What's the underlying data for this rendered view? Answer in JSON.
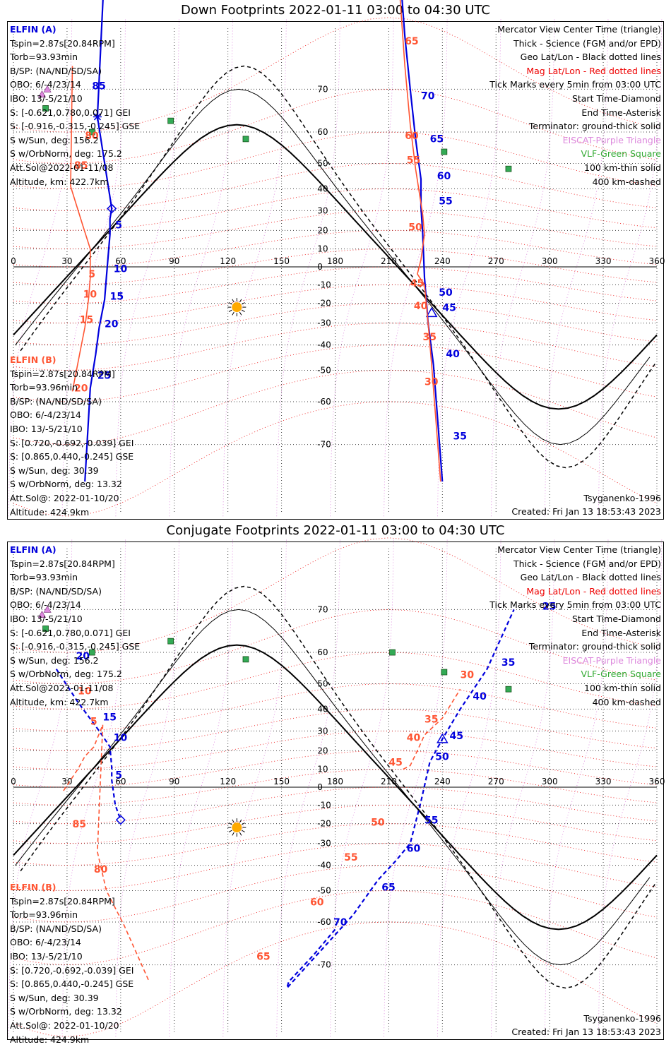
{
  "panels": [
    {
      "title": "Down Footprints 2022-01-11 03:00 to 04:30 UTC",
      "elfin_a": {
        "name": "ELFIN (A)",
        "lines": [
          "Tspin=2.87s[20.84RPM]",
          "Torb=93.93min",
          "B/SP: (NA/ND/SD/SA)",
          "OBO: 6/-4/23/14",
          "IBO: 13/-5/21/10",
          "S: [-0.621,0.780,0.071] GEI",
          "S: [-0.916,-0.315,-0.245] GSE",
          "S w/Sun, deg: 156.2",
          "S w/OrbNorm, deg: 175.2",
          "Att.Sol@2022-01-11/08",
          "Altitude, km: 422.7km"
        ]
      },
      "elfin_b": {
        "name": "ELFIN (B)",
        "lines": [
          "Tspin=2.87s[20.84RPM]",
          "Torb=93.96min",
          "B/SP: (NA/ND/SD/SA)",
          "OBO: 6/-4/23/14",
          "IBO: 13/-5/21/10",
          "S: [0.720,-0.692,-0.039] GEI",
          "S: [0.865,0.440,-0.245] GSE",
          "S w/Sun, deg: 30.39",
          "S w/OrbNorm, deg: 13.32",
          "Att.Sol@: 2022-01-10/20",
          "Altitude: 424.9km"
        ]
      },
      "model": "Tsyganenko-1996",
      "created": "Created: Fri Jan 13 18:53:43 2023"
    },
    {
      "title": "Conjugate Footprints 2022-01-11 03:00 to 04:30 UTC",
      "elfin_a": {
        "name": "ELFIN (A)",
        "lines": [
          "Tspin=2.87s[20.84RPM]",
          "Torb=93.93min",
          "B/SP: (NA/ND/SD/SA)",
          "OBO: 6/-4/23/14",
          "IBO: 13/-5/21/10",
          "S: [-0.621,0.780,0.071] GEI",
          "S: [-0.916,-0.315,-0.245] GSE",
          "S w/Sun, deg: 156.2",
          "S w/OrbNorm, deg: 175.2",
          "Att.Sol@2022-01-11/08",
          "Altitude, km: 422.7km"
        ]
      },
      "elfin_b": {
        "name": "ELFIN (B)",
        "lines": [
          "Tspin=2.87s[20.84RPM]",
          "Torb=93.96min",
          "B/SP: (NA/ND/SD/SA)",
          "OBO: 6/-4/23/14",
          "IBO: 13/-5/21/10",
          "S: [0.720,-0.692,-0.039] GEI",
          "S: [0.865,0.440,-0.245] GSE",
          "S w/Sun, deg: 30.39",
          "S w/OrbNorm, deg: 13.32",
          "Att.Sol@: 2022-01-10/20",
          "Altitude: 424.9km"
        ]
      },
      "model": "Tsyganenko-1996",
      "created": "Created: Fri Jan 13 18:53:43 2023"
    }
  ],
  "legend": [
    {
      "text": "Mercator View Center Time (triangle)",
      "color": "#000000"
    },
    {
      "text": "Thick - Science (FGM and/or EPD)",
      "color": "#000000"
    },
    {
      "text": "Geo Lat/Lon - Black dotted lines",
      "color": "#000000"
    },
    {
      "text": "Mag Lat/Lon - Red dotted lines",
      "color": "#ee0000"
    },
    {
      "text": "Tick Marks every 5min from 03:00 UTC",
      "color": "#000000"
    },
    {
      "text": "Start Time-Diamond",
      "color": "#000000"
    },
    {
      "text": "End Time-Asterisk",
      "color": "#000000"
    },
    {
      "text": "Terminator: ground-thick solid",
      "color": "#000000"
    },
    {
      "text": "EISCAT-Purple Triangle",
      "color": "#dd88dd"
    },
    {
      "text": "VLF-Green Square",
      "color": "#33aa33"
    },
    {
      "text": "100 km-thin solid",
      "color": "#000000"
    },
    {
      "text": "400 km-dashed",
      "color": "#000000"
    }
  ],
  "chart_data": [
    {
      "type": "line",
      "title": "Down Footprints 2022-01-11 03:00 to 04:30 UTC",
      "projection": "Mercator",
      "xlim": [
        0,
        360
      ],
      "x_ticks": [
        0,
        30,
        60,
        90,
        120,
        150,
        180,
        210,
        240,
        270,
        300,
        330,
        360
      ],
      "y_ticks": [
        70,
        60,
        50,
        40,
        30,
        20,
        10,
        0,
        -10,
        -20,
        -30,
        -40,
        -50,
        -60,
        -70
      ],
      "sun": {
        "lon": 125,
        "lat": -22
      },
      "vlf_stations": [
        [
          18,
          66
        ],
        [
          44,
          60
        ],
        [
          88,
          63
        ],
        [
          130,
          58
        ],
        [
          241,
          54
        ],
        [
          277,
          48
        ]
      ],
      "eiscat": [
        [
          19,
          70
        ],
        [
          16,
          69
        ]
      ],
      "series": [
        {
          "name": "ELFIN (A)",
          "color": "#0000dd",
          "points": [
            [
              51,
              85
            ],
            [
              47,
              64
            ],
            [
              55,
              31
            ],
            [
              54,
              26
            ],
            [
              54,
              18
            ],
            [
              52,
              -6
            ],
            [
              51,
              -18
            ],
            [
              48,
              -32
            ],
            [
              46,
              -44
            ],
            [
              43,
              -56
            ],
            [
              40,
              -76
            ]
          ],
          "ticks": [
            {
              "label": "85",
              "lon": 44,
              "lat": 70
            },
            {
              "label": "5",
              "lon": 57,
              "lat": 21
            },
            {
              "label": "10",
              "lon": 56,
              "lat": -3
            },
            {
              "label": "15",
              "lon": 54,
              "lat": -18
            },
            {
              "label": "20",
              "lon": 51,
              "lat": -32
            },
            {
              "label": "25",
              "lon": 47,
              "lat": -53
            }
          ],
          "start": [
            55,
            31
          ],
          "end": [
            47,
            64
          ]
        },
        {
          "name": "ELFIN (B)",
          "color": "#ff5533",
          "points": [
            [
              33,
              74
            ],
            [
              32,
              41
            ],
            [
              39,
              22
            ],
            [
              43,
              10
            ],
            [
              43,
              -6
            ],
            [
              42,
              -18
            ],
            [
              40,
              -32
            ],
            [
              37,
              -44
            ],
            [
              33,
              -57
            ]
          ],
          "ticks": [
            {
              "label": "80",
              "lon": 40,
              "lat": 58
            },
            {
              "label": "85",
              "lon": 34,
              "lat": 48
            },
            {
              "label": "5",
              "lon": 42,
              "lat": -6
            },
            {
              "label": "10",
              "lon": 39,
              "lat": -17
            },
            {
              "label": "15",
              "lon": 37,
              "lat": -30
            },
            {
              "label": "20",
              "lon": 34,
              "lat": -57
            }
          ]
        },
        {
          "name": "ELFIN (A) south",
          "color": "#0000dd",
          "points": [
            [
              216,
              86
            ],
            [
              219,
              78
            ],
            [
              222,
              70
            ],
            [
              225,
              58
            ],
            [
              228,
              44
            ],
            [
              228,
              32
            ],
            [
              229,
              18
            ],
            [
              230,
              -6
            ],
            [
              232,
              -30
            ],
            [
              235,
              -48
            ],
            [
              240,
              -76
            ]
          ],
          "ticks": [
            {
              "label": "70",
              "lon": 228,
              "lat": 68
            },
            {
              "label": "65",
              "lon": 233,
              "lat": 57
            },
            {
              "label": "60",
              "lon": 237,
              "lat": 44
            },
            {
              "label": "55",
              "lon": 238,
              "lat": 33
            },
            {
              "label": "50",
              "lon": 238,
              "lat": -16
            },
            {
              "label": "45",
              "lon": 240,
              "lat": -24
            },
            {
              "label": "40",
              "lon": 242,
              "lat": -45
            },
            {
              "label": "35",
              "lon": 246,
              "lat": -69
            }
          ],
          "center": [
            234,
            -25
          ]
        },
        {
          "name": "ELFIN (B) south",
          "color": "#ff5533",
          "points": [
            [
              215,
              86
            ],
            [
              219,
              74
            ],
            [
              222,
              62
            ],
            [
              225,
              48
            ],
            [
              229,
              28
            ],
            [
              230,
              18
            ],
            [
              228,
              4
            ],
            [
              226,
              -4
            ],
            [
              230,
              -10
            ],
            [
              232,
              -30
            ],
            [
              234,
              -48
            ],
            [
              239,
              -76
            ]
          ],
          "ticks": [
            {
              "label": "65",
              "lon": 219,
              "lat": 77
            },
            {
              "label": "60",
              "lon": 219,
              "lat": 58
            },
            {
              "label": "55",
              "lon": 220,
              "lat": 50
            },
            {
              "label": "50",
              "lon": 221,
              "lat": 20
            },
            {
              "label": "45",
              "lon": 222,
              "lat": -11
            },
            {
              "label": "40",
              "lon": 224,
              "lat": -23
            },
            {
              "label": "35",
              "lon": 229,
              "lat": -38
            },
            {
              "label": "30",
              "lon": 230,
              "lat": -55
            }
          ]
        }
      ]
    },
    {
      "type": "line",
      "title": "Conjugate Footprints 2022-01-11 03:00 to 04:30 UTC",
      "projection": "Mercator",
      "xlim": [
        0,
        360
      ],
      "x_ticks": [
        0,
        30,
        60,
        90,
        120,
        150,
        180,
        210,
        240,
        270,
        300,
        330,
        360
      ],
      "y_ticks": [
        70,
        60,
        50,
        40,
        30,
        20,
        10,
        0,
        -10,
        -20,
        -30,
        -40,
        -50,
        -60,
        -70
      ],
      "sun": {
        "lon": 125,
        "lat": -22
      },
      "vlf_stations": [
        [
          18,
          66
        ],
        [
          44,
          60
        ],
        [
          88,
          63
        ],
        [
          130,
          58
        ],
        [
          212,
          60
        ],
        [
          241,
          54
        ],
        [
          277,
          48
        ]
      ],
      "eiscat": [
        [
          19,
          70
        ],
        [
          16,
          69
        ]
      ],
      "series": [
        {
          "name": "ELFIN (A)",
          "color": "#0000dd",
          "points": [
            [
              24,
              55
            ],
            [
              36,
              43
            ],
            [
              48,
              30
            ],
            [
              54,
              22
            ],
            [
              55,
              11
            ],
            [
              55,
              4
            ],
            [
              57,
              -10
            ],
            [
              60,
              -18
            ]
          ],
          "ticks": [
            {
              "label": "20",
              "lon": 35,
              "lat": 58
            },
            {
              "label": "15",
              "lon": 50,
              "lat": 35
            },
            {
              "label": "10",
              "lon": 56,
              "lat": 25
            },
            {
              "label": "5",
              "lon": 57,
              "lat": 5
            }
          ],
          "start": [
            60,
            -18
          ]
        },
        {
          "name": "ELFIN (A) south",
          "color": "#0000dd",
          "points": [
            [
              180,
              -62
            ],
            [
              168,
              -68
            ],
            [
              154,
              -73
            ],
            [
              153,
              -74
            ],
            [
              190,
              -58
            ],
            [
              204,
              -46
            ],
            [
              214,
              -38
            ],
            [
              222,
              -30
            ],
            [
              228,
              -8
            ],
            [
              233,
              14
            ],
            [
              240,
              26
            ],
            [
              250,
              40
            ],
            [
              265,
              55
            ],
            [
              280,
              70
            ]
          ],
          "ticks": [
            {
              "label": "70",
              "lon": 179,
              "lat": -61
            },
            {
              "label": "65",
              "lon": 206,
              "lat": -50
            },
            {
              "label": "60",
              "lon": 220,
              "lat": -34
            },
            {
              "label": "55",
              "lon": 230,
              "lat": -20
            },
            {
              "label": "50",
              "lon": 236,
              "lat": 15
            },
            {
              "label": "45",
              "lon": 244,
              "lat": 26
            },
            {
              "label": "40",
              "lon": 257,
              "lat": 44
            },
            {
              "label": "35",
              "lon": 273,
              "lat": 56
            },
            {
              "label": "25",
              "lon": 296,
              "lat": 70
            }
          ],
          "center": [
            240,
            26
          ]
        },
        {
          "name": "ELFIN (B)",
          "color": "#ff5533",
          "points": [
            [
              28,
              -2
            ],
            [
              36,
              10
            ],
            [
              40,
              17
            ],
            [
              45,
              22
            ],
            [
              50,
              33
            ],
            [
              47,
              -34
            ],
            [
              52,
              -50
            ],
            [
              62,
              -61
            ],
            [
              76,
              -73
            ]
          ],
          "ticks": [
            {
              "label": "5",
              "lon": 43,
              "lat": 33
            },
            {
              "label": "10",
              "lon": 36,
              "lat": 46
            },
            {
              "label": "85",
              "lon": 33,
              "lat": -22
            },
            {
              "label": "80",
              "lon": 45,
              "lat": -43
            }
          ]
        },
        {
          "name": "ELFIN (B) south",
          "color": "#ff5533",
          "points": [
            [
              218,
              10
            ],
            [
              222,
              12
            ],
            [
              226,
              20
            ],
            [
              230,
              28
            ],
            [
              240,
              36
            ],
            [
              250,
              48
            ]
          ],
          "ticks": [
            {
              "label": "65",
              "lon": 136,
              "lat": -69
            },
            {
              "label": "60",
              "lon": 166,
              "lat": -55
            },
            {
              "label": "55",
              "lon": 185,
              "lat": -38
            },
            {
              "label": "50",
              "lon": 200,
              "lat": -21
            },
            {
              "label": "45",
              "lon": 210,
              "lat": 12
            },
            {
              "label": "40",
              "lon": 220,
              "lat": 25
            },
            {
              "label": "35",
              "lon": 230,
              "lat": 34
            },
            {
              "label": "30",
              "lon": 250,
              "lat": 52
            }
          ]
        }
      ]
    }
  ]
}
